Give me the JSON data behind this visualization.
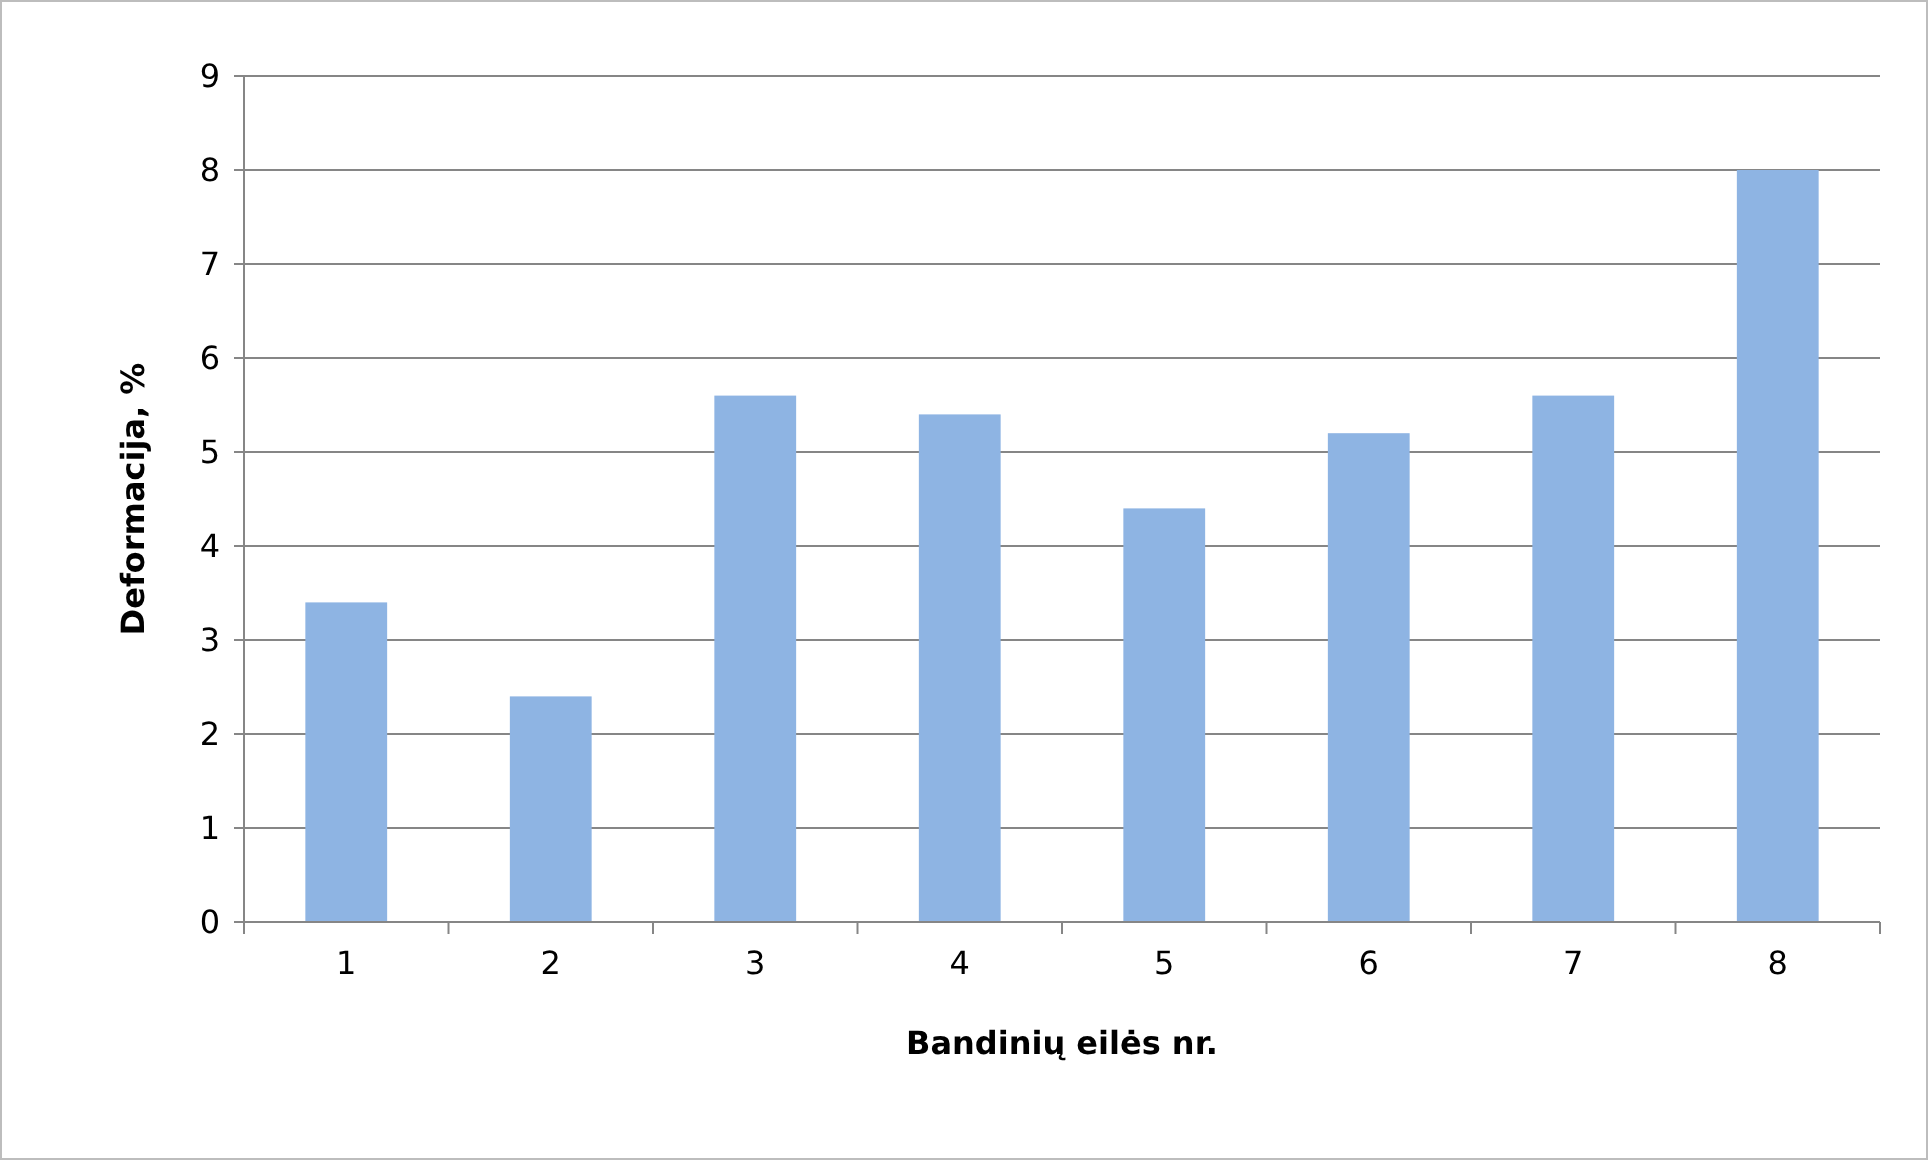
{
  "chart_data": {
    "type": "bar",
    "xlabel": "Bandinių eilės nr.",
    "ylabel": "Deformacija, %",
    "categories": [
      "1",
      "2",
      "3",
      "4",
      "5",
      "6",
      "7",
      "8"
    ],
    "values": [
      3.4,
      2.4,
      5.6,
      5.4,
      4.4,
      5.2,
      5.6,
      8.0
    ],
    "color": "#8eb4e3",
    "ylim": [
      0,
      9
    ],
    "yticks": [
      0,
      1,
      2,
      3,
      4,
      5,
      6,
      7,
      8,
      9
    ],
    "grid": "y"
  }
}
